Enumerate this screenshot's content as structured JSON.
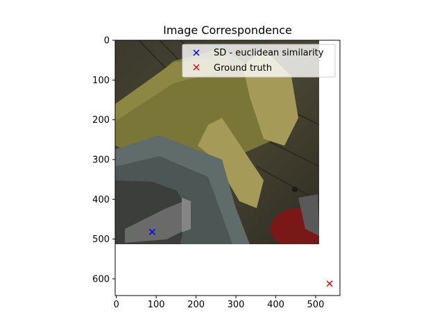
{
  "chart_data": {
    "type": "scatter",
    "title": "Image Correspondence",
    "xlabel": "",
    "ylabel": "",
    "xlim": [
      -3,
      561
    ],
    "ylim": [
      642,
      0
    ],
    "y_inverted": true,
    "grid": false,
    "legend_position": "top-right",
    "background_image": {
      "description_tag": "photo",
      "extent_x": [
        0,
        512
      ],
      "extent_y": [
        512,
        0
      ]
    },
    "x_ticks": [
      0,
      100,
      200,
      300,
      400,
      500
    ],
    "y_ticks": [
      0,
      100,
      200,
      300,
      400,
      500,
      600
    ],
    "series": [
      {
        "name": "SD - euclidean similarity",
        "marker": "x",
        "color": "#0000ff",
        "points": [
          {
            "x": 90,
            "y": 482
          }
        ]
      },
      {
        "name": "Ground truth",
        "marker": "x",
        "color": "#ff0000",
        "points": [
          {
            "x": 535,
            "y": 612
          }
        ]
      }
    ]
  }
}
